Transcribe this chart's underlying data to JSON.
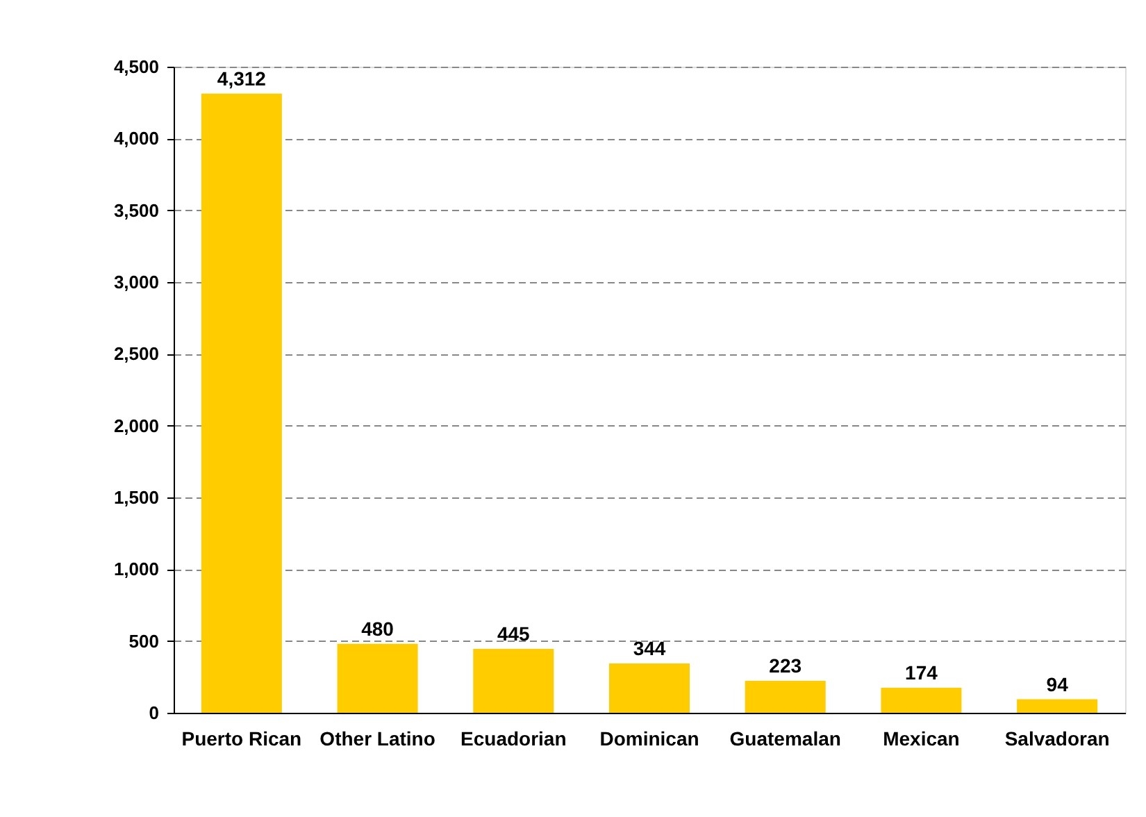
{
  "chart_data": {
    "type": "bar",
    "categories": [
      "Puerto Rican",
      "Other Latino",
      "Ecuadorian",
      "Dominican",
      "Guatemalan",
      "Mexican",
      "Salvadoran"
    ],
    "values": [
      4312,
      480,
      445,
      344,
      223,
      174,
      94
    ],
    "value_labels": [
      "4,312",
      "480",
      "445",
      "344",
      "223",
      "174",
      "94"
    ],
    "color": "#ffcc00",
    "ylim": [
      0,
      4500
    ],
    "yticks": [
      {
        "value": 0,
        "label": "0"
      },
      {
        "value": 500,
        "label": "500"
      },
      {
        "value": 1000,
        "label": "1,000"
      },
      {
        "value": 1500,
        "label": "1,500"
      },
      {
        "value": 2000,
        "label": "2,000"
      },
      {
        "value": 2500,
        "label": "2,500"
      },
      {
        "value": 3000,
        "label": "3,000"
      },
      {
        "value": 3500,
        "label": "3,500"
      },
      {
        "value": 4000,
        "label": "4,000"
      },
      {
        "value": 4500,
        "label": "4,500"
      }
    ],
    "grid": "y"
  }
}
